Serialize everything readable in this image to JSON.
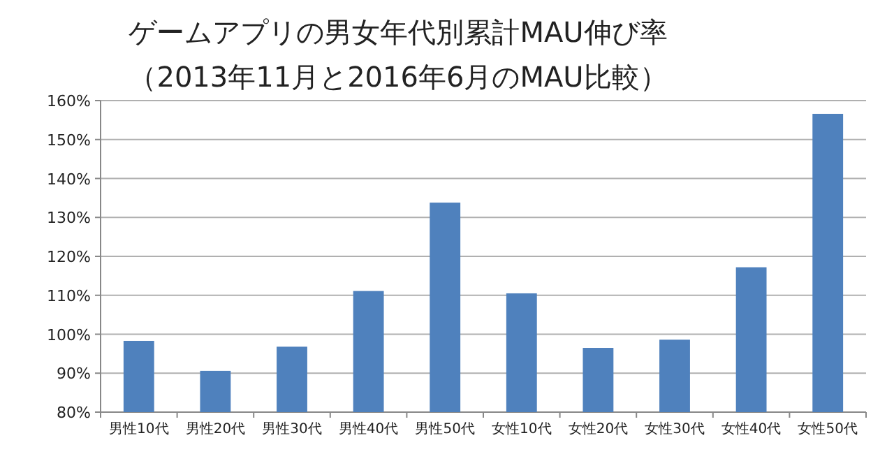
{
  "chart_data": {
    "type": "bar",
    "title": "ゲームアプリの男女年代別累計MAU伸び率",
    "subtitle": "（2013年11月と2016年6月のMAU比較）",
    "categories": [
      "男性10代",
      "男性20代",
      "男性30代",
      "男性40代",
      "男性50代",
      "女性10代",
      "女性20代",
      "女性30代",
      "女性40代",
      "女性50代"
    ],
    "values": [
      98.3,
      90.6,
      96.8,
      111.1,
      133.8,
      110.5,
      96.5,
      98.6,
      117.2,
      156.6
    ],
    "color": "#4f81bd",
    "ylim": [
      80,
      160
    ],
    "yticks": [
      {
        "value": 80,
        "label": "80%"
      },
      {
        "value": 90,
        "label": "90%"
      },
      {
        "value": 100,
        "label": "100%"
      },
      {
        "value": 110,
        "label": "110%"
      },
      {
        "value": 120,
        "label": "120%"
      },
      {
        "value": 130,
        "label": "130%"
      },
      {
        "value": 140,
        "label": "140%"
      },
      {
        "value": 150,
        "label": "150%"
      },
      {
        "value": 160,
        "label": "160%"
      }
    ],
    "grid": "y"
  }
}
